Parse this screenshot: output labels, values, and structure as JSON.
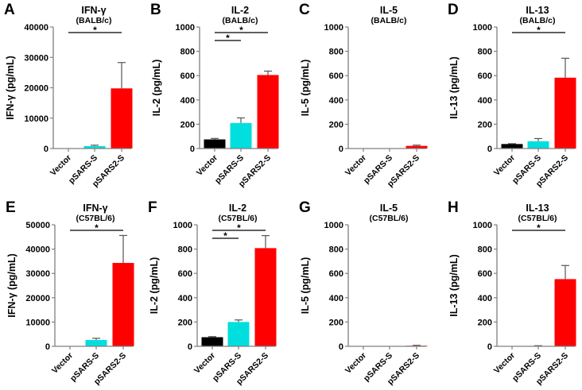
{
  "chart_data": [
    {
      "type": "bar",
      "panel": "A",
      "title": "IFN-γ",
      "subtitle": "(BALB/c)",
      "ylabel": "IFN-γ (pg/mL)",
      "ylim": [
        0,
        40000
      ],
      "yticks": [
        0,
        10000,
        20000,
        30000,
        40000
      ],
      "categories": [
        "Vector",
        "pSARS-S",
        "pSARS2-S"
      ],
      "values": [
        0,
        800,
        19800
      ],
      "errors": [
        0,
        300,
        8500
      ],
      "significance": [
        {
          "from": 0,
          "to": 2,
          "label": "*"
        }
      ]
    },
    {
      "type": "bar",
      "panel": "B",
      "title": "IL-2",
      "subtitle": "(BALB/c)",
      "ylabel": "IL-2 (pg/mL)",
      "ylim": [
        0,
        1000
      ],
      "yticks": [
        0,
        200,
        400,
        600,
        800,
        1000
      ],
      "categories": [
        "Vector",
        "pSARS-S",
        "pSARS2-S"
      ],
      "values": [
        75,
        210,
        605
      ],
      "errors": [
        8,
        42,
        32
      ],
      "significance": [
        {
          "from": 0,
          "to": 2,
          "label": "*"
        },
        {
          "from": 0,
          "to": 1,
          "label": "*"
        }
      ]
    },
    {
      "type": "bar",
      "panel": "C",
      "title": "IL-5",
      "subtitle": "(BALB/c)",
      "ylabel": "IL-5 (pg/mL)",
      "ylim": [
        0,
        1000
      ],
      "yticks": [
        0,
        200,
        400,
        600,
        800,
        1000
      ],
      "categories": [
        "Vector",
        "pSARS-S",
        "pSARS2-S"
      ],
      "values": [
        0,
        0,
        22
      ],
      "errors": [
        0,
        0,
        6
      ],
      "significance": []
    },
    {
      "type": "bar",
      "panel": "D",
      "title": "IL-13",
      "subtitle": "(BALB/c)",
      "ylabel": "IL-13 (pg/mL)",
      "ylim": [
        0,
        1000
      ],
      "yticks": [
        0,
        200,
        400,
        600,
        800,
        1000
      ],
      "categories": [
        "Vector",
        "pSARS-S",
        "pSARS2-S"
      ],
      "values": [
        37,
        60,
        583
      ],
      "errors": [
        3,
        22,
        160
      ],
      "significance": [
        {
          "from": 0,
          "to": 2,
          "label": "*"
        }
      ]
    },
    {
      "type": "bar",
      "panel": "E",
      "title": "IFN-γ",
      "subtitle": "(C57BL/6)",
      "ylabel": "IFN-γ (pg/mL)",
      "ylim": [
        0,
        50000
      ],
      "yticks": [
        0,
        10000,
        20000,
        30000,
        40000,
        50000
      ],
      "categories": [
        "Vector",
        "pSARS-S",
        "pSARS2-S"
      ],
      "values": [
        0,
        2600,
        34300
      ],
      "errors": [
        0,
        700,
        11300
      ],
      "significance": [
        {
          "from": 0,
          "to": 2,
          "label": "*"
        }
      ]
    },
    {
      "type": "bar",
      "panel": "F",
      "title": "IL-2",
      "subtitle": "(C57BL/6)",
      "ylabel": "IL-2 (pg/mL)",
      "ylim": [
        0,
        1000
      ],
      "yticks": [
        0,
        200,
        400,
        600,
        800,
        1000
      ],
      "categories": [
        "Vector",
        "pSARS-S",
        "pSARS2-S"
      ],
      "values": [
        75,
        200,
        808
      ],
      "errors": [
        5,
        17,
        103
      ],
      "significance": [
        {
          "from": 0,
          "to": 2,
          "label": "*"
        },
        {
          "from": 0,
          "to": 1,
          "label": "*"
        }
      ]
    },
    {
      "type": "bar",
      "panel": "G",
      "title": "IL-5",
      "subtitle": "(C57BL/6)",
      "ylabel": "IL-5 (pg/mL)",
      "ylim": [
        0,
        1000
      ],
      "yticks": [
        0,
        200,
        400,
        600,
        800,
        1000
      ],
      "categories": [
        "Vector",
        "pSARS-S",
        "pSARS2-S"
      ],
      "values": [
        0,
        0,
        5
      ],
      "errors": [
        0,
        0,
        3
      ],
      "significance": []
    },
    {
      "type": "bar",
      "panel": "H",
      "title": "IL-13",
      "subtitle": "(C57BL/6)",
      "ylabel": "IL-13 (pg/mL)",
      "ylim": [
        0,
        1000
      ],
      "yticks": [
        0,
        200,
        400,
        600,
        800,
        1000
      ],
      "categories": [
        "Vector",
        "pSARS-S",
        "pSARS2-S"
      ],
      "values": [
        0,
        3,
        553
      ],
      "errors": [
        0,
        2,
        112
      ],
      "significance": [
        {
          "from": 0,
          "to": 2,
          "label": "*"
        }
      ]
    }
  ],
  "colors": {
    "Vector": "#000000",
    "pSARS-S": "#00dede",
    "pSARS2-S": "#ff0000",
    "axis": "#808080"
  }
}
